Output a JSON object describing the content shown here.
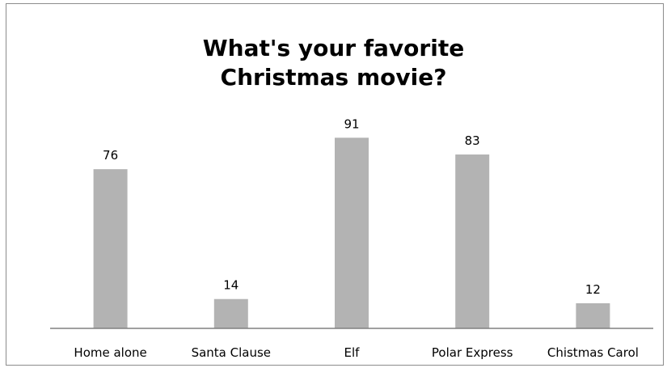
{
  "chart_data": {
    "type": "bar",
    "title_lines": [
      "What's your favorite",
      "Christmas movie?"
    ],
    "categories": [
      "Home alone",
      "Santa Clause",
      "Elf",
      "Polar Express",
      "Chistmas Carol"
    ],
    "values": [
      76,
      14,
      91,
      83,
      12
    ],
    "data_labels": [
      "76",
      "14",
      "91",
      "83",
      "12"
    ],
    "xlabel": "",
    "ylabel": "",
    "ylim": [
      0,
      100
    ],
    "grid": false,
    "legend": "none",
    "colors": {
      "bar": "#b3b3b3",
      "axis": "#808080",
      "frame": "#8c8c8c"
    }
  }
}
